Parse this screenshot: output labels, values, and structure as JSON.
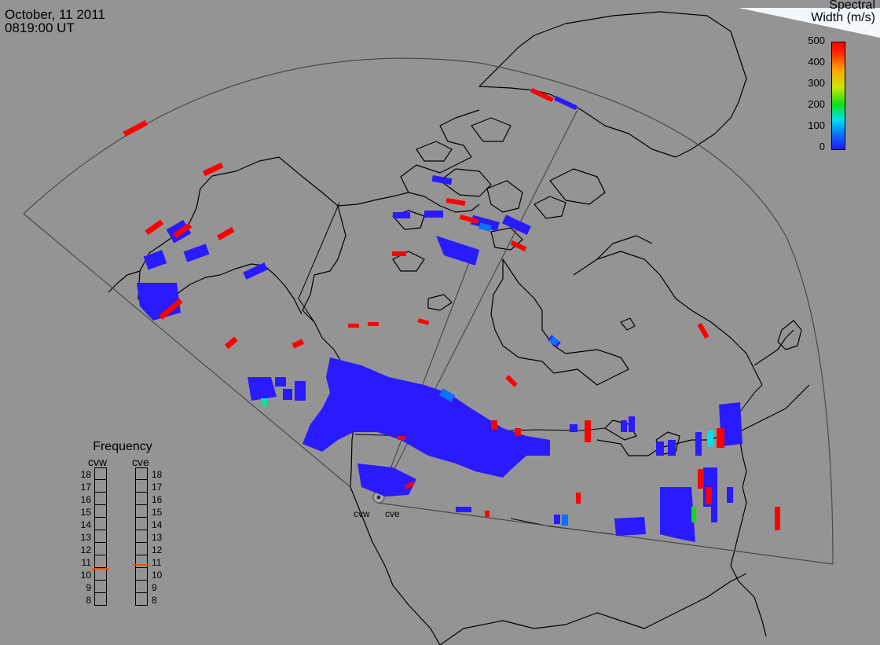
{
  "header": {
    "date": "October, 11 2011",
    "time": "0819:00 UT"
  },
  "colorbar": {
    "title_line1": "Spectral",
    "title_line2": "Width (m/s)",
    "ticks": [
      "500",
      "400",
      "300",
      "200",
      "100",
      "0"
    ],
    "range": [
      0,
      500
    ],
    "colors": [
      "#1a1aff",
      "#0a72ff",
      "#00e0f0",
      "#10e010",
      "#c8e800",
      "#ffa500",
      "#ff0000"
    ]
  },
  "frequency_panel": {
    "title": "Frequency",
    "radars": [
      "cvw",
      "cve"
    ],
    "levels": [
      "18",
      "17",
      "16",
      "15",
      "14",
      "13",
      "12",
      "11",
      "10",
      "9",
      "8"
    ],
    "cvw_value": 10.5,
    "cve_value": 10.8,
    "marker_color": "#ff4a00"
  },
  "radar_sites": [
    "cvw",
    "cve"
  ],
  "map_colors": {
    "background": "#949494",
    "coastline": "#000000",
    "field_of_view": "#4a4a4a"
  }
}
